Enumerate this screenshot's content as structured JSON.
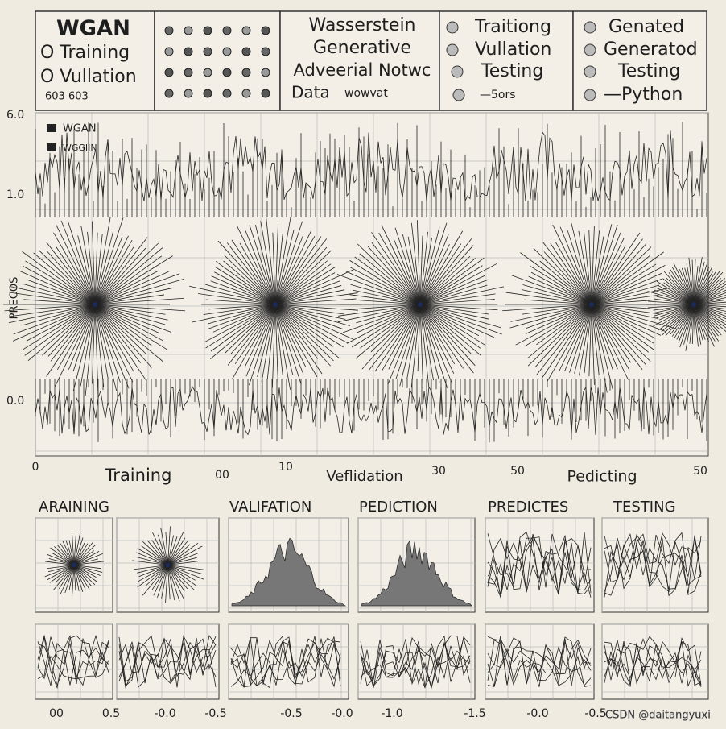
{
  "header": {
    "box1": {
      "title": "WGAN",
      "items": [
        "O Training",
        "O Vullation",
        "603 603"
      ]
    },
    "box3": {
      "lines": [
        "Wasserstein",
        "Generative",
        "Adveerial Notwc"
      ],
      "data": "Data",
      "data_note": "wowvat"
    },
    "box4": {
      "items": [
        "Traitiong",
        "Vullation",
        "Testing",
        "—5ors"
      ]
    },
    "box5": {
      "items": [
        "Genated",
        "Generatod",
        "Testing",
        "—Python"
      ]
    }
  },
  "main_panel": {
    "y_axis_label": "PRECOS",
    "y_ticks": [
      "6.0",
      "1.0",
      "0.0"
    ],
    "legend": [
      "WGAN",
      "WGGIIN"
    ],
    "x_ticks": [
      "0",
      "00",
      "10",
      "30",
      "50",
      "50"
    ],
    "x_labels": [
      "Training",
      "Veflidation",
      "Pedicting"
    ]
  },
  "small_panels": {
    "titles": [
      "ARAINING",
      "VALIFATION",
      "PEDICTION",
      "PREDICTES",
      "TESTING"
    ],
    "x_ticks": [
      "00",
      "0.5",
      "-0.0",
      "-0.5",
      "-0.5",
      "-0.0",
      "-1.0",
      "-1.5",
      "-0.0",
      "-0.5"
    ]
  },
  "watermark": "CSDN @daitangyuxi"
}
